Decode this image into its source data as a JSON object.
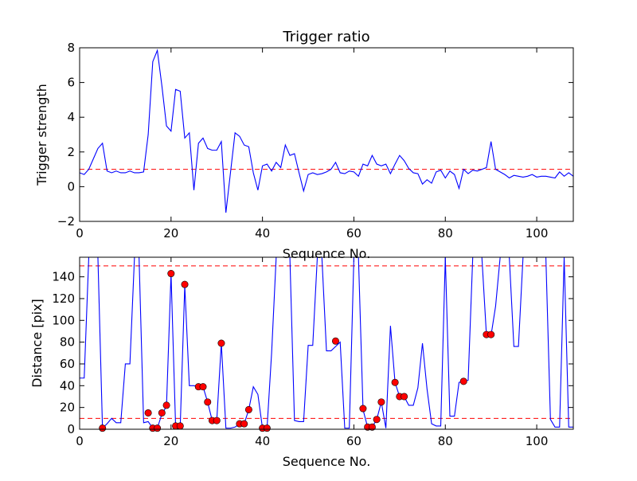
{
  "chart_data": [
    {
      "type": "line",
      "title": "Trigger ratio",
      "xlabel": "Sequence No.",
      "ylabel": "Trigger strength",
      "xlim": [
        0,
        108
      ],
      "ylim": [
        -2,
        8
      ],
      "xticks": [
        "0",
        "20",
        "40",
        "60",
        "80",
        "100"
      ],
      "yticks": [
        "−2",
        "0",
        "2",
        "4",
        "6",
        "8"
      ],
      "grid": false,
      "series_color": "#0000ff",
      "ref_color": "#ff0000",
      "x": [
        0,
        1,
        2,
        3,
        4,
        5,
        6,
        7,
        8,
        9,
        10,
        11,
        12,
        13,
        14,
        15,
        16,
        17,
        18,
        19,
        20,
        21,
        22,
        23,
        24,
        25,
        26,
        27,
        28,
        29,
        30,
        31,
        32,
        33,
        34,
        35,
        36,
        37,
        38,
        39,
        40,
        41,
        42,
        43,
        44,
        45,
        46,
        47,
        48,
        49,
        50,
        51,
        52,
        53,
        54,
        55,
        56,
        57,
        58,
        59,
        60,
        61,
        62,
        63,
        64,
        65,
        66,
        67,
        68,
        69,
        70,
        71,
        72,
        73,
        74,
        75,
        76,
        77,
        78,
        79,
        80,
        81,
        82,
        83,
        84,
        85,
        86,
        87,
        88,
        89,
        90,
        91,
        92,
        93,
        94,
        95,
        96,
        97,
        98,
        99,
        100,
        101,
        102,
        103,
        104,
        105,
        106,
        107,
        108
      ],
      "y": [
        0.8,
        0.7,
        1.0,
        1.6,
        2.2,
        2.5,
        0.9,
        0.8,
        0.9,
        0.8,
        0.8,
        0.9,
        0.8,
        0.8,
        0.85,
        3.0,
        7.2,
        7.85,
        5.8,
        3.5,
        3.2,
        5.6,
        5.5,
        2.8,
        3.1,
        -0.2,
        2.5,
        2.8,
        2.2,
        2.1,
        2.1,
        2.6,
        -1.5,
        0.8,
        3.1,
        2.9,
        2.4,
        2.3,
        0.8,
        -0.2,
        1.2,
        1.3,
        0.9,
        1.4,
        1.1,
        2.4,
        1.8,
        1.9,
        0.8,
        -0.25,
        0.7,
        0.8,
        0.7,
        0.75,
        0.85,
        1.0,
        1.4,
        0.8,
        0.75,
        0.9,
        0.85,
        0.6,
        1.3,
        1.2,
        1.8,
        1.3,
        1.2,
        1.3,
        0.75,
        1.3,
        1.8,
        1.5,
        1.05,
        0.8,
        0.75,
        0.15,
        0.4,
        0.2,
        0.85,
        0.95,
        0.5,
        0.9,
        0.7,
        -0.1,
        1.0,
        0.75,
        0.95,
        0.9,
        1.0,
        1.1,
        2.6,
        1.0,
        0.85,
        0.7,
        0.5,
        0.65,
        0.6,
        0.55,
        0.6,
        0.7,
        0.55,
        0.6,
        0.6,
        0.55,
        0.5,
        0.85,
        0.6,
        0.8,
        0.6
      ],
      "reference_line": 1.0
    },
    {
      "type": "line",
      "title": "",
      "xlabel": "Sequence No.",
      "ylabel": "Distance [pix]",
      "xlim": [
        0,
        108
      ],
      "ylim": [
        0,
        158
      ],
      "xticks": [
        "0",
        "20",
        "40",
        "60",
        "80",
        "100"
      ],
      "yticks": [
        "0",
        "20",
        "40",
        "60",
        "80",
        "100",
        "120",
        "140"
      ],
      "grid": false,
      "series_color": "#0000ff",
      "marker_color": "#ff0000",
      "x": [
        0,
        1,
        2,
        3,
        4,
        5,
        6,
        7,
        8,
        9,
        10,
        11,
        12,
        13,
        14,
        15,
        16,
        17,
        18,
        19,
        20,
        21,
        22,
        23,
        24,
        25,
        26,
        27,
        28,
        29,
        30,
        31,
        32,
        33,
        34,
        35,
        36,
        37,
        38,
        39,
        40,
        41,
        42,
        43,
        44,
        45,
        46,
        47,
        48,
        49,
        50,
        51,
        52,
        53,
        54,
        55,
        56,
        57,
        58,
        59,
        60,
        61,
        62,
        63,
        64,
        65,
        66,
        67,
        68,
        69,
        70,
        71,
        72,
        73,
        74,
        75,
        76,
        77,
        78,
        79,
        80,
        81,
        82,
        83,
        84,
        85,
        86,
        87,
        88,
        89,
        90,
        91,
        92,
        93,
        94,
        95,
        96,
        97,
        98,
        99,
        100,
        101,
        102,
        103,
        104,
        105,
        106,
        107,
        108
      ],
      "y": [
        47,
        47,
        158,
        158,
        158,
        1,
        5,
        10,
        6,
        6,
        60,
        60,
        158,
        158,
        6,
        7,
        1,
        1,
        14,
        21,
        143,
        2,
        2,
        132,
        40,
        40,
        39,
        39,
        25,
        8,
        8,
        79,
        1,
        1,
        2,
        5,
        5,
        18,
        39,
        32,
        1,
        1,
        70,
        158,
        158,
        158,
        158,
        8,
        7,
        7,
        77,
        77,
        158,
        158,
        72,
        72,
        76,
        80,
        1,
        1,
        158,
        158,
        18,
        2,
        2,
        9,
        25,
        1,
        95,
        43,
        30,
        30,
        22,
        22,
        38,
        79,
        37,
        5,
        3,
        3,
        158,
        12,
        12,
        43,
        44,
        45,
        158,
        158,
        158,
        86,
        86,
        113,
        158,
        158,
        158,
        76,
        76,
        158,
        158,
        158,
        158,
        158,
        158,
        9,
        2,
        2,
        158,
        2,
        2
      ],
      "markers": [
        [
          5,
          1
        ],
        [
          15,
          15
        ],
        [
          16,
          1
        ],
        [
          17,
          1
        ],
        [
          18,
          15
        ],
        [
          19,
          22
        ],
        [
          20,
          143
        ],
        [
          21,
          3
        ],
        [
          22,
          3
        ],
        [
          23,
          133
        ],
        [
          26,
          39
        ],
        [
          27,
          39
        ],
        [
          28,
          25
        ],
        [
          29,
          8
        ],
        [
          30,
          8
        ],
        [
          31,
          79
        ],
        [
          35,
          5
        ],
        [
          36,
          5
        ],
        [
          37,
          18
        ],
        [
          40,
          1
        ],
        [
          41,
          1
        ],
        [
          56,
          81
        ],
        [
          62,
          19
        ],
        [
          63,
          2
        ],
        [
          64,
          2
        ],
        [
          65,
          9
        ],
        [
          66,
          25
        ],
        [
          69,
          43
        ],
        [
          70,
          30
        ],
        [
          71,
          30
        ],
        [
          84,
          44
        ],
        [
          89,
          87
        ],
        [
          90,
          87
        ]
      ],
      "reference_lines": [
        10,
        150
      ]
    }
  ]
}
